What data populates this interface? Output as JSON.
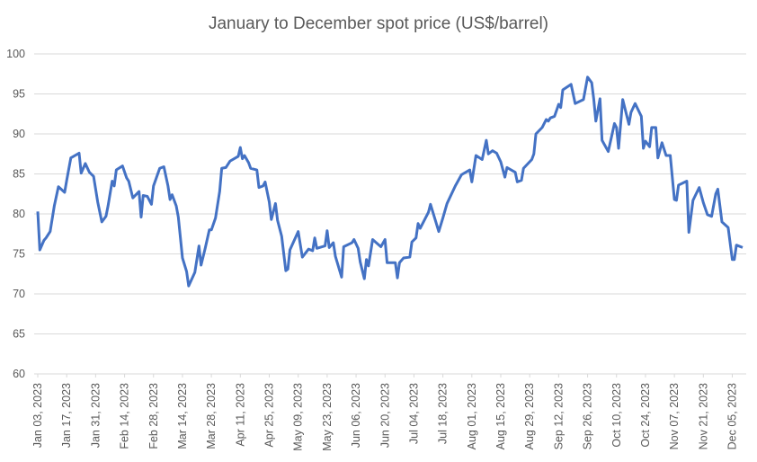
{
  "chart_data": {
    "type": "line",
    "title": "January to December spot price (US$/barrel)",
    "x": [
      "2023-01-03",
      "2023-01-04",
      "2023-01-06",
      "2023-01-07",
      "2023-01-09",
      "2023-01-11",
      "2023-01-13",
      "2023-01-16",
      "2023-01-17",
      "2023-01-19",
      "2023-01-23",
      "2023-01-24",
      "2023-01-26",
      "2023-01-28",
      "2023-01-30",
      "2023-02-01",
      "2023-02-03",
      "2023-02-05",
      "2023-02-06",
      "2023-02-08",
      "2023-02-09",
      "2023-02-10",
      "2023-02-13",
      "2023-02-15",
      "2023-02-16",
      "2023-02-18",
      "2023-02-21",
      "2023-02-22",
      "2023-02-23",
      "2023-02-25",
      "2023-02-27",
      "2023-02-28",
      "2023-03-03",
      "2023-03-05",
      "2023-03-07",
      "2023-03-08",
      "2023-03-09",
      "2023-03-11",
      "2023-03-12",
      "2023-03-14",
      "2023-03-16",
      "2023-03-17",
      "2023-03-20",
      "2023-03-22",
      "2023-03-23",
      "2023-03-25",
      "2023-03-27",
      "2023-03-28",
      "2023-03-30",
      "2023-04-01",
      "2023-04-02",
      "2023-04-04",
      "2023-04-06",
      "2023-04-10",
      "2023-04-11",
      "2023-04-12",
      "2023-04-13",
      "2023-04-15",
      "2023-04-16",
      "2023-04-19",
      "2023-04-20",
      "2023-04-22",
      "2023-04-23",
      "2023-04-25",
      "2023-04-26",
      "2023-04-28",
      "2023-04-29",
      "2023-05-01",
      "2023-05-03",
      "2023-05-04",
      "2023-05-05",
      "2023-05-09",
      "2023-05-10",
      "2023-05-11",
      "2023-05-14",
      "2023-05-16",
      "2023-05-17",
      "2023-05-18",
      "2023-05-22",
      "2023-05-23",
      "2023-05-24",
      "2023-05-26",
      "2023-05-27",
      "2023-05-30",
      "2023-05-31",
      "2023-06-04",
      "2023-06-05",
      "2023-06-07",
      "2023-06-08",
      "2023-06-10",
      "2023-06-11",
      "2023-06-12",
      "2023-06-14",
      "2023-06-18",
      "2023-06-20",
      "2023-06-21",
      "2023-06-25",
      "2023-06-26",
      "2023-06-27",
      "2023-06-29",
      "2023-07-02",
      "2023-07-03",
      "2023-07-05",
      "2023-07-06",
      "2023-07-07",
      "2023-07-11",
      "2023-07-12",
      "2023-07-14",
      "2023-07-16",
      "2023-07-18",
      "2023-07-20",
      "2023-07-24",
      "2023-07-27",
      "2023-07-31",
      "2023-08-01",
      "2023-08-03",
      "2023-08-06",
      "2023-08-08",
      "2023-08-09",
      "2023-08-11",
      "2023-08-13",
      "2023-08-15",
      "2023-08-17",
      "2023-08-18",
      "2023-08-22",
      "2023-08-23",
      "2023-08-25",
      "2023-08-26",
      "2023-08-30",
      "2023-08-31",
      "2023-09-01",
      "2023-09-04",
      "2023-09-06",
      "2023-09-07",
      "2023-09-08",
      "2023-09-10",
      "2023-09-12",
      "2023-09-13",
      "2023-09-14",
      "2023-09-18",
      "2023-09-20",
      "2023-09-24",
      "2023-09-26",
      "2023-09-28",
      "2023-09-29",
      "2023-09-30",
      "2023-10-02",
      "2023-10-03",
      "2023-10-06",
      "2023-10-09",
      "2023-10-10",
      "2023-10-11",
      "2023-10-13",
      "2023-10-16",
      "2023-10-17",
      "2023-10-19",
      "2023-10-22",
      "2023-10-23",
      "2023-10-24",
      "2023-10-26",
      "2023-10-27",
      "2023-10-29",
      "2023-10-30",
      "2023-11-01",
      "2023-11-03",
      "2023-11-05",
      "2023-11-07",
      "2023-11-08",
      "2023-11-09",
      "2023-11-13",
      "2023-11-14",
      "2023-11-16",
      "2023-11-19",
      "2023-11-21",
      "2023-11-23",
      "2023-11-25",
      "2023-11-27",
      "2023-11-28",
      "2023-11-30",
      "2023-12-03",
      "2023-12-05",
      "2023-12-06",
      "2023-12-07",
      "2023-12-10"
    ],
    "series": [
      {
        "name": "Spot price",
        "color": "#4472c4",
        "values": [
          80.3,
          75.5,
          76.7,
          77,
          77.8,
          81,
          83.4,
          82.7,
          84.2,
          87,
          87.6,
          85.1,
          86.3,
          85.2,
          84.7,
          81.5,
          79,
          79.7,
          81,
          84.1,
          83.5,
          85.5,
          86,
          84.5,
          84.1,
          82,
          82.8,
          79.6,
          82.3,
          82.2,
          81.2,
          83.5,
          85.7,
          85.9,
          83.5,
          81.8,
          82.4,
          81,
          79.6,
          74.5,
          72.8,
          71,
          72.7,
          76,
          73.6,
          75.7,
          78,
          78,
          79.5,
          82.8,
          85.7,
          85.8,
          86.6,
          87.2,
          88.3,
          86.9,
          87.3,
          86.4,
          85.7,
          85.5,
          83.3,
          83.5,
          84,
          81.5,
          79.3,
          81.3,
          79.2,
          77.2,
          72.9,
          73.1,
          75.5,
          77.8,
          76.2,
          74.6,
          75.6,
          75.4,
          77,
          75.7,
          76,
          77.9,
          75.8,
          76.4,
          74.7,
          72.1,
          75.9,
          76.4,
          76.8,
          75.7,
          74,
          71.9,
          74.3,
          73.5,
          76.8,
          75.9,
          76.8,
          73.9,
          73.9,
          72,
          73.9,
          74.5,
          74.6,
          76.5,
          77,
          78.8,
          78.2,
          80.2,
          81.2,
          79.5,
          77.8,
          79.5,
          81.3,
          83.5,
          84.9,
          85.5,
          84,
          87.3,
          86.8,
          89.2,
          87.5,
          87.9,
          87.6,
          86.5,
          84.6,
          85.8,
          85.2,
          84,
          84.2,
          85.7,
          86.8,
          87.5,
          90,
          90.8,
          91.8,
          91.6,
          92,
          92.2,
          93.7,
          93.3,
          95.5,
          96.2,
          93.8,
          94.3,
          97.1,
          96.4,
          94.3,
          91.6,
          94.4,
          89.2,
          87.8,
          91.3,
          90.8,
          88.2,
          94.3,
          91.2,
          92.7,
          93.8,
          92.2,
          88.2,
          89.1,
          88.4,
          90.8,
          90.8,
          87,
          88.9,
          87.3,
          87.3,
          81.8,
          81.7,
          83.6,
          84.1,
          77.7,
          81.7,
          83.3,
          81.4,
          79.9,
          79.7,
          82.5,
          83.1,
          79,
          78.3,
          74.3,
          74.3,
          76.1,
          75.8
        ]
      }
    ],
    "xlim": [
      "2023-01-03",
      "2023-12-10"
    ],
    "xticks": [
      {
        "value": "2023-01-03",
        "label": "Jan 03, 2023"
      },
      {
        "value": "2023-01-17",
        "label": "Jan 17, 2023"
      },
      {
        "value": "2023-01-31",
        "label": "Jan 31, 2023"
      },
      {
        "value": "2023-02-14",
        "label": "Feb 14, 2023"
      },
      {
        "value": "2023-02-28",
        "label": "Feb 28, 2023"
      },
      {
        "value": "2023-03-14",
        "label": "Mar 14, 2023"
      },
      {
        "value": "2023-03-28",
        "label": "Mar 28, 2023"
      },
      {
        "value": "2023-04-11",
        "label": "Apr 11, 2023"
      },
      {
        "value": "2023-04-25",
        "label": "Apr 25, 2023"
      },
      {
        "value": "2023-05-09",
        "label": "May 09, 2023"
      },
      {
        "value": "2023-05-23",
        "label": "May 23, 2023"
      },
      {
        "value": "2023-06-06",
        "label": "Jun 06, 2023"
      },
      {
        "value": "2023-06-20",
        "label": "Jun 20, 2023"
      },
      {
        "value": "2023-07-04",
        "label": "Jul 04, 2023"
      },
      {
        "value": "2023-07-18",
        "label": "Jul 18, 2023"
      },
      {
        "value": "2023-08-01",
        "label": "Aug 01, 2023"
      },
      {
        "value": "2023-08-15",
        "label": "Aug 15, 2023"
      },
      {
        "value": "2023-08-29",
        "label": "Aug 29, 2023"
      },
      {
        "value": "2023-09-12",
        "label": "Sep 12, 2023"
      },
      {
        "value": "2023-09-26",
        "label": "Sep 26, 2023"
      },
      {
        "value": "2023-10-10",
        "label": "Oct 10, 2023"
      },
      {
        "value": "2023-10-24",
        "label": "Oct 24, 2023"
      },
      {
        "value": "2023-11-07",
        "label": "Nov 07, 2023"
      },
      {
        "value": "2023-11-21",
        "label": "Nov 21, 2023"
      },
      {
        "value": "2023-12-05",
        "label": "Dec 05, 2023"
      }
    ],
    "ylim": [
      60,
      100
    ],
    "yticks": [
      60,
      65,
      70,
      75,
      80,
      85,
      90,
      95,
      100
    ],
    "grid": true
  }
}
